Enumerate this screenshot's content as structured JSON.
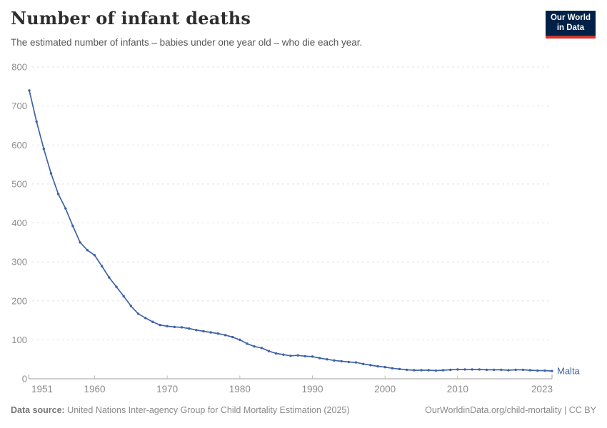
{
  "header": {
    "title": "Number of infant deaths",
    "subtitle": "The estimated number of infants – babies under one year old – who die each year.",
    "logo": {
      "line1": "Our World",
      "line2": "in Data"
    }
  },
  "footer": {
    "source_label": "Data source:",
    "source_text": " United Nations Inter-agency Group for Child Mortality Estimation (2025)",
    "link_text": "OurWorldinData.org/child-mortality | CC BY"
  },
  "colors": {
    "line": "#3d63a8",
    "entity_label": "#3d63a8",
    "grid": "#e3e3e3",
    "axis": "#9e9e9e",
    "tick": "#bdbdbd",
    "tick_label": "#8b8b8b",
    "logo_navy": "#002147",
    "logo_red": "#d0342c"
  },
  "chart_data": {
    "type": "line",
    "title": "Number of infant deaths",
    "entity": "Malta",
    "end_label": "Malta",
    "grid": "horizontal-dashed",
    "legend_position": "end-of-line",
    "xlim": [
      1951,
      2023
    ],
    "ylim": [
      0,
      800
    ],
    "xticks": [
      1951,
      1960,
      1970,
      1980,
      1990,
      2000,
      2010,
      2023
    ],
    "yticks": [
      0,
      100,
      200,
      300,
      400,
      500,
      600,
      700,
      800
    ],
    "x": [
      1951,
      1952,
      1953,
      1954,
      1955,
      1956,
      1957,
      1958,
      1959,
      1960,
      1961,
      1962,
      1963,
      1964,
      1965,
      1966,
      1967,
      1968,
      1969,
      1970,
      1971,
      1972,
      1973,
      1974,
      1975,
      1976,
      1977,
      1978,
      1979,
      1980,
      1981,
      1982,
      1983,
      1984,
      1985,
      1986,
      1987,
      1988,
      1989,
      1990,
      1991,
      1992,
      1993,
      1994,
      1995,
      1996,
      1997,
      1998,
      1999,
      2000,
      2001,
      2002,
      2003,
      2004,
      2005,
      2006,
      2007,
      2008,
      2009,
      2010,
      2011,
      2012,
      2013,
      2014,
      2015,
      2016,
      2017,
      2018,
      2019,
      2020,
      2021,
      2022,
      2023
    ],
    "series": [
      {
        "name": "Malta",
        "values": [
          740,
          660,
          590,
          527,
          474,
          437,
          392,
          350,
          330,
          317,
          289,
          260,
          236,
          212,
          187,
          167,
          156,
          146,
          138,
          135,
          133,
          132,
          129,
          125,
          122,
          119,
          116,
          112,
          107,
          100,
          90,
          83,
          79,
          71,
          65,
          62,
          59,
          60,
          58,
          57,
          53,
          50,
          47,
          45,
          43,
          42,
          38,
          35,
          32,
          30,
          27,
          25,
          23,
          22,
          22,
          22,
          21,
          22,
          23,
          24,
          24,
          24,
          24,
          23,
          23,
          23,
          22,
          23,
          23,
          22,
          21,
          21,
          20
        ]
      }
    ]
  }
}
